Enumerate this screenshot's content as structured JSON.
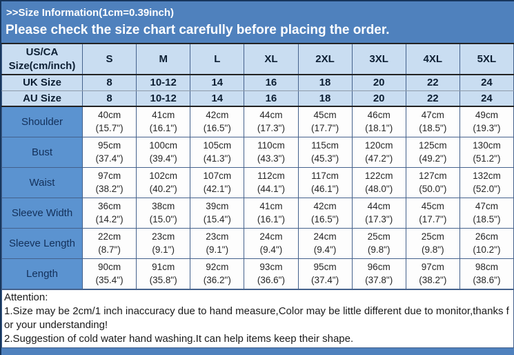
{
  "banner": {
    "title": ">>Size Information(1cm=0.39inch)",
    "subtitle": "Please check the size chart carefully before placing the order."
  },
  "table": {
    "header": {
      "label": "US/CA Size(cm/inch)",
      "sizes": [
        "S",
        "M",
        "L",
        "XL",
        "2XL",
        "3XL",
        "4XL",
        "5XL"
      ]
    },
    "size_rows": [
      {
        "key": "uk-size",
        "label": "UK Size",
        "values": [
          "8",
          "10-12",
          "14",
          "16",
          "18",
          "20",
          "22",
          "24"
        ]
      },
      {
        "key": "au-size",
        "label": "AU Size",
        "values": [
          "8",
          "10-12",
          "14",
          "16",
          "18",
          "20",
          "22",
          "24"
        ]
      }
    ],
    "measure_rows": [
      {
        "key": "shoulder",
        "label": "Shoulder",
        "cells": [
          {
            "cm": "40cm",
            "in": "(15.7\")"
          },
          {
            "cm": "41cm",
            "in": "(16.1\")"
          },
          {
            "cm": "42cm",
            "in": "(16.5\")"
          },
          {
            "cm": "44cm",
            "in": "(17.3\")"
          },
          {
            "cm": "45cm",
            "in": "(17.7\")"
          },
          {
            "cm": "46cm",
            "in": "(18.1\")"
          },
          {
            "cm": "47cm",
            "in": "(18.5\")"
          },
          {
            "cm": "49cm",
            "in": "(19.3\")"
          }
        ]
      },
      {
        "key": "bust",
        "label": "Bust",
        "cells": [
          {
            "cm": "95cm",
            "in": "(37.4\")"
          },
          {
            "cm": "100cm",
            "in": "(39.4\")"
          },
          {
            "cm": "105cm",
            "in": "(41.3\")"
          },
          {
            "cm": "110cm",
            "in": "(43.3\")"
          },
          {
            "cm": "115cm",
            "in": "(45.3\")"
          },
          {
            "cm": "120cm",
            "in": "(47.2\")"
          },
          {
            "cm": "125cm",
            "in": "(49.2\")"
          },
          {
            "cm": "130cm",
            "in": "(51.2\")"
          }
        ]
      },
      {
        "key": "waist",
        "label": "Waist",
        "cells": [
          {
            "cm": "97cm",
            "in": "(38.2\")"
          },
          {
            "cm": "102cm",
            "in": "(40.2\")"
          },
          {
            "cm": "107cm",
            "in": "(42.1\")"
          },
          {
            "cm": "112cm",
            "in": "(44.1\")"
          },
          {
            "cm": "117cm",
            "in": "(46.1\")"
          },
          {
            "cm": "122cm",
            "in": "(48.0\")"
          },
          {
            "cm": "127cm",
            "in": "(50.0\")"
          },
          {
            "cm": "132cm",
            "in": "(52.0\")"
          }
        ]
      },
      {
        "key": "sleeve-width",
        "label": "Sleeve Width",
        "cells": [
          {
            "cm": "36cm",
            "in": "(14.2\")"
          },
          {
            "cm": "38cm",
            "in": "(15.0\")"
          },
          {
            "cm": "39cm",
            "in": "(15.4\")"
          },
          {
            "cm": "41cm",
            "in": "(16.1\")"
          },
          {
            "cm": "42cm",
            "in": "(16.5\")"
          },
          {
            "cm": "44cm",
            "in": "(17.3\")"
          },
          {
            "cm": "45cm",
            "in": "(17.7\")"
          },
          {
            "cm": "47cm",
            "in": "(18.5\")"
          }
        ]
      },
      {
        "key": "sleeve-length",
        "label": "Sleeve Length",
        "cells": [
          {
            "cm": "22cm",
            "in": "(8.7\")"
          },
          {
            "cm": "23cm",
            "in": "(9.1\")"
          },
          {
            "cm": "23cm",
            "in": "(9.1\")"
          },
          {
            "cm": "24cm",
            "in": "(9.4\")"
          },
          {
            "cm": "24cm",
            "in": "(9.4\")"
          },
          {
            "cm": "25cm",
            "in": "(9.8\")"
          },
          {
            "cm": "25cm",
            "in": "(9.8\")"
          },
          {
            "cm": "26cm",
            "in": "(10.2\")"
          }
        ]
      },
      {
        "key": "length",
        "label": "Length",
        "cells": [
          {
            "cm": "90cm",
            "in": "(35.4\")"
          },
          {
            "cm": "91cm",
            "in": "(35.8\")"
          },
          {
            "cm": "92cm",
            "in": "(36.2\")"
          },
          {
            "cm": "93cm",
            "in": "(36.6\")"
          },
          {
            "cm": "95cm",
            "in": "(37.4\")"
          },
          {
            "cm": "96cm",
            "in": "(37.8\")"
          },
          {
            "cm": "97cm",
            "in": "(38.2\")"
          },
          {
            "cm": "98cm",
            "in": "(38.6\")"
          }
        ]
      }
    ]
  },
  "attention": {
    "title": "Attention:",
    "notes": [
      "1.Size may be 2cm/1 inch inaccuracy due to hand measure,Color may be little different due to monitor,thanks for your understanding!",
      "2.Suggestion of cold water hand washing.It can help items keep their shape."
    ]
  },
  "colors": {
    "banner_bg": "#4f81bd",
    "header_bg": "#c9ddf1",
    "row_label_bg": "#5b93d0",
    "grid_line": "#44618c",
    "dark_line": "#222222",
    "title_text": "#ffffff",
    "cell_text": "#262626"
  }
}
